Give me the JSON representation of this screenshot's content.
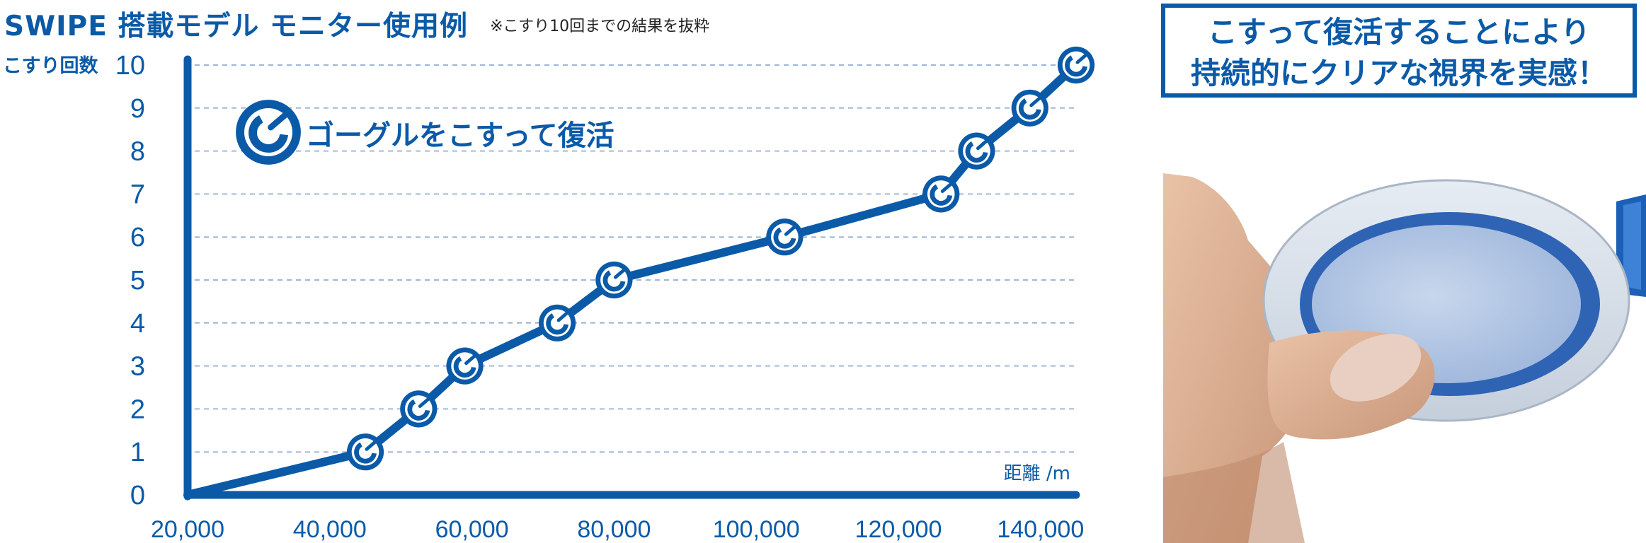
{
  "header": {
    "title": "SWIPE 搭載モデル モニター使用例",
    "note": "※こすり10回までの結果を抜粋"
  },
  "callout": {
    "line1": "こすって復活することにより",
    "line2": "持続的にクリアな視界を実感！"
  },
  "colors": {
    "accent": "#0a5aa8",
    "grid": "#7f9fcc"
  },
  "icons": {
    "marker": "wiping-finger-icon",
    "photo": "finger-wiping-goggle-lens-photo"
  },
  "chart_data": {
    "type": "line",
    "title": "",
    "xlabel": "距離 /m",
    "ylabel": "こすり回数",
    "legend": "ゴーグルをこすって復活",
    "xlim": [
      20000,
      145000
    ],
    "ylim": [
      0,
      10
    ],
    "x_ticks": [
      "20,000",
      "40,000",
      "60,000",
      "80,000",
      "100,000",
      "120,000",
      "140,000"
    ],
    "y_ticks": [
      "0",
      "1",
      "2",
      "3",
      "4",
      "5",
      "6",
      "7",
      "8",
      "9",
      "10"
    ],
    "grid": "horizontal dashed",
    "series": [
      {
        "points": [
          {
            "x": 20000,
            "y": 0
          },
          {
            "x": 45000,
            "y": 1
          },
          {
            "x": 52500,
            "y": 2
          },
          {
            "x": 59000,
            "y": 3
          },
          {
            "x": 72000,
            "y": 4
          },
          {
            "x": 80000,
            "y": 5
          },
          {
            "x": 104000,
            "y": 6
          },
          {
            "x": 126000,
            "y": 7
          },
          {
            "x": 131000,
            "y": 8
          },
          {
            "x": 138500,
            "y": 9
          },
          {
            "x": 145000,
            "y": 10
          }
        ]
      }
    ]
  }
}
